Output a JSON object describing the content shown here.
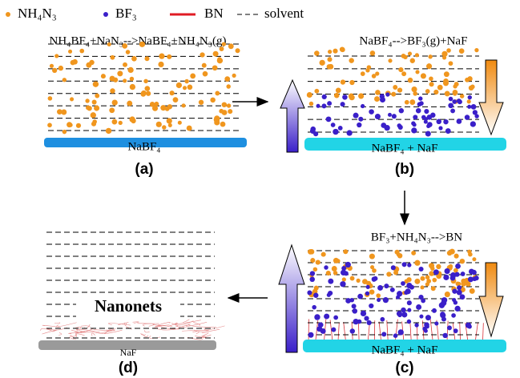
{
  "legend": {
    "items": [
      "NH₄N₃",
      "BF₃",
      "BN",
      "solvent"
    ]
  },
  "panels": [
    {
      "label": "(a)",
      "reaction": "NH₄BF₄+NaN₃-->NaBF₄+NH₄N₃(g)",
      "substrate": "NaBF₄"
    },
    {
      "label": "(b)",
      "reaction": "NaBF₄-->BF₃(g)+NaF",
      "substrate": "NaBF₄ + NaF"
    },
    {
      "label": "(c)",
      "reaction": "BF₃+NH₄N₃-->BN",
      "substrate": "NaBF₄ + NaF"
    },
    {
      "label": "(d)",
      "product": "Nanonets",
      "substrate": "NaF"
    }
  ]
}
